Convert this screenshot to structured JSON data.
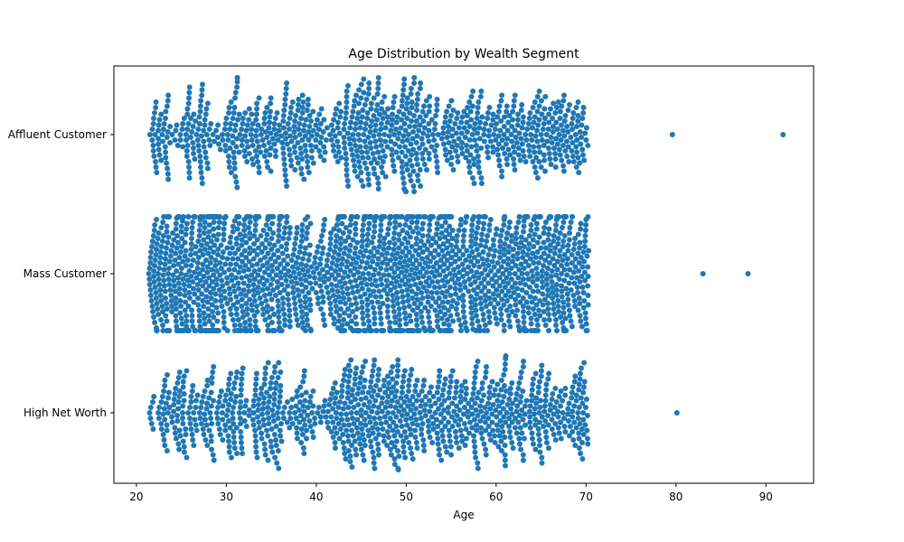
{
  "chart_data": {
    "type": "scatter",
    "subtype": "swarm",
    "title": "Age Distribution by Wealth Segment",
    "xlabel": "Age",
    "ylabel": "",
    "xlim": [
      17.5,
      95.3
    ],
    "x_ticks": [
      20,
      30,
      40,
      50,
      60,
      70,
      80,
      90
    ],
    "categories": [
      "Affluent Customer",
      "Mass Customer",
      "High Net Worth"
    ],
    "point_color": "#1f77b4",
    "grid": false,
    "legend": "none",
    "series": [
      {
        "category": "Affluent Customer",
        "age_range": [
          21.5,
          70.2
        ],
        "approx_count": 980,
        "outliers": [
          79.6,
          91.9
        ],
        "lean_bins": [
          [
            24,
            25
          ],
          [
            28,
            30
          ],
          [
            35,
            36
          ],
          [
            40,
            42
          ],
          [
            53,
            55
          ]
        ],
        "dense_bins": [
          [
            43,
            50
          ],
          [
            37,
            39
          ]
        ]
      },
      {
        "category": "Mass Customer",
        "age_range": [
          21.3,
          70.3
        ],
        "approx_count": 2000,
        "outliers": [
          83,
          88
        ],
        "lean_bins": [
          [
            39.5,
            41.5
          ]
        ],
        "dense_bins": [
          [
            42,
            52
          ],
          [
            27,
            30
          ]
        ]
      },
      {
        "category": "High Net Worth",
        "age_range": [
          21.4,
          70.2
        ],
        "approx_count": 1020,
        "outliers": [
          80.1
        ],
        "lean_bins": [
          [
            21,
            23
          ],
          [
            31,
            33
          ],
          [
            40,
            41
          ]
        ],
        "dense_bins": [
          [
            43,
            50
          ]
        ]
      }
    ]
  }
}
